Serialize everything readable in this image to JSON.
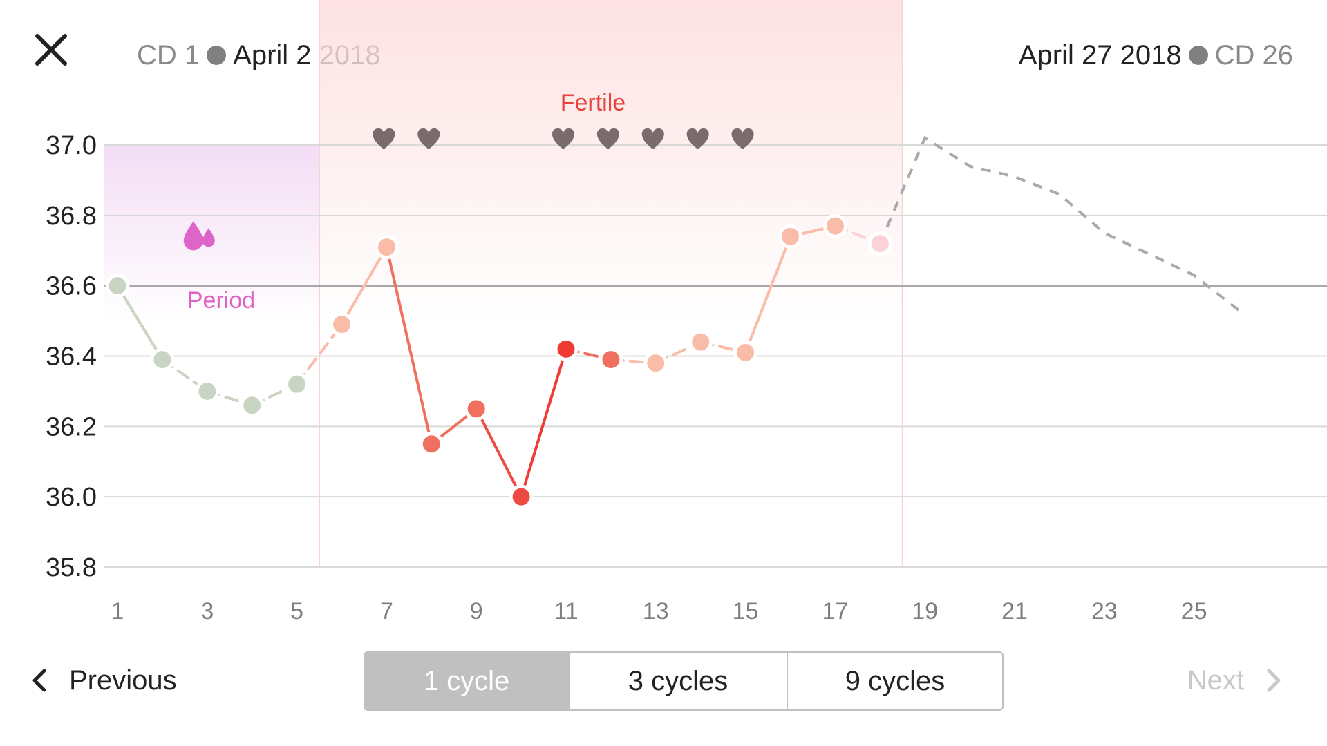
{
  "header": {
    "start_cd": "CD 1",
    "start_date": "April 2 2018",
    "end_date": "April 27 2018",
    "end_cd": "CD 26"
  },
  "icons": {
    "close": "close-icon",
    "previous": "chevron-left-icon",
    "next": "chevron-right-icon",
    "period": "drops-icon",
    "intercourse": "heart-icon"
  },
  "colors": {
    "period_label": "#e062c6",
    "fertile_label": "#e8423c",
    "period_series": "#c9d4c3",
    "fertile_series": "#f4a59a",
    "prediction": "#aaaaaa",
    "heart": "#7a6c6c"
  },
  "chart_data": {
    "type": "line",
    "xlabel": "",
    "ylabel": "",
    "x_ticks": [
      1,
      3,
      5,
      7,
      9,
      11,
      13,
      15,
      17,
      19,
      21,
      23,
      25
    ],
    "y_ticks": [
      "37.0",
      "36.8",
      "36.6",
      "36.4",
      "36.2",
      "36.0",
      "35.8"
    ],
    "xlim": [
      1,
      27
    ],
    "ylim": [
      35.8,
      37.0
    ],
    "coverline": 36.6,
    "regions": [
      {
        "label": "Period",
        "from_day": 1,
        "to_day": 5
      },
      {
        "label": "Fertile",
        "from_day": 6,
        "to_day": 18
      }
    ],
    "period_markers": [
      3
    ],
    "intercourse_days": [
      7,
      8,
      11,
      12,
      13,
      14,
      15
    ],
    "temperatures": [
      {
        "day": 1,
        "temp": 36.6,
        "color": "#c9d4c3"
      },
      {
        "day": 2,
        "temp": 36.39,
        "color": "#c9d4c3"
      },
      {
        "day": 3,
        "temp": 36.3,
        "color": "#c9d4c3"
      },
      {
        "day": 4,
        "temp": 36.26,
        "color": "#c9d4c3"
      },
      {
        "day": 5,
        "temp": 36.32,
        "color": "#c9d4c3"
      },
      {
        "day": 6,
        "temp": 36.49,
        "color": "#f9bca9"
      },
      {
        "day": 7,
        "temp": 36.71,
        "color": "#f9bca9"
      },
      {
        "day": 8,
        "temp": 36.15,
        "color": "#f0705f"
      },
      {
        "day": 9,
        "temp": 36.25,
        "color": "#f0705f"
      },
      {
        "day": 10,
        "temp": 36.0,
        "color": "#ee4a41"
      },
      {
        "day": 11,
        "temp": 36.42,
        "color": "#ef3b33"
      },
      {
        "day": 12,
        "temp": 36.39,
        "color": "#f0705f"
      },
      {
        "day": 13,
        "temp": 36.38,
        "color": "#f9bca9"
      },
      {
        "day": 14,
        "temp": 36.44,
        "color": "#f9bca9"
      },
      {
        "day": 15,
        "temp": 36.41,
        "color": "#f9bca9"
      },
      {
        "day": 16,
        "temp": 36.74,
        "color": "#f9bca9"
      },
      {
        "day": 17,
        "temp": 36.77,
        "color": "#f9bca9"
      },
      {
        "day": 18,
        "temp": 36.72,
        "color": "#fbd2d6"
      }
    ],
    "prediction": [
      {
        "day": 18,
        "temp": 36.72
      },
      {
        "day": 19,
        "temp": 37.02
      },
      {
        "day": 20,
        "temp": 36.94
      },
      {
        "day": 21,
        "temp": 36.91
      },
      {
        "day": 22,
        "temp": 36.86
      },
      {
        "day": 23,
        "temp": 36.75
      },
      {
        "day": 24,
        "temp": 36.69
      },
      {
        "day": 25,
        "temp": 36.63
      },
      {
        "day": 26,
        "temp": 36.53
      }
    ]
  },
  "nav": {
    "previous_label": "Previous",
    "next_label": "Next",
    "segments": [
      "1 cycle",
      "3 cycles",
      "9 cycles"
    ],
    "active_segment": "1 cycle"
  }
}
